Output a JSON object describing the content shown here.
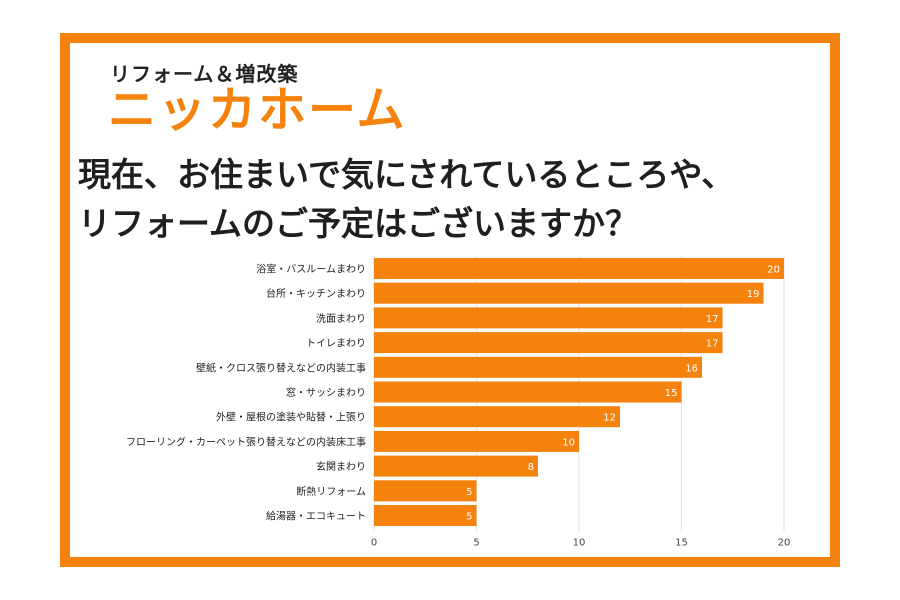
{
  "brand": {
    "tagline": "リフォーム＆増改築",
    "name": "ニッカホーム"
  },
  "title": {
    "line1": "現在、お住まいで気にされているところや、",
    "line2": "リフォームのご予定はございますか？"
  },
  "colors": {
    "accent": "#f5820d",
    "bar": "#f5820d",
    "text": "#1f1f1f",
    "grid": "#e3e3e3"
  },
  "chart_data": {
    "type": "bar",
    "orientation": "horizontal",
    "categories": [
      "浴室・バスルームまわり",
      "台所・キッチンまわり",
      "洗面まわり",
      "トイレまわり",
      "壁紙・クロス張り替えなどの内装工事",
      "窓・サッシまわり",
      "外壁・屋根の塗装や貼替・上張り",
      "フローリング・カーペット張り替えなどの内装床工事",
      "玄関まわり",
      "断熱リフォーム",
      "給湯器・エコキュート"
    ],
    "values": [
      20,
      19,
      17,
      17,
      16,
      15,
      12,
      10,
      8,
      5,
      5
    ],
    "xlim": [
      0,
      20
    ],
    "xticks": [
      0,
      5,
      10,
      15,
      20
    ],
    "grid": true,
    "data_labels": true
  }
}
